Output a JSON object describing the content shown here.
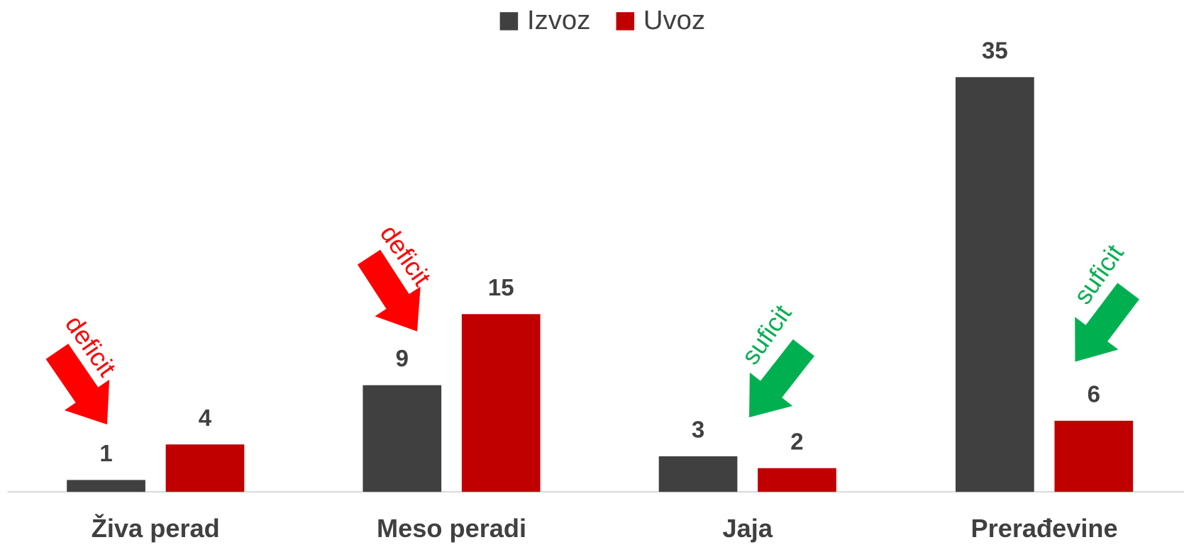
{
  "chart_data": {
    "type": "bar",
    "categories": [
      "Živa perad",
      "Meso peradi",
      "Jaja",
      "Prerađevine"
    ],
    "series": [
      {
        "name": "Izvoz",
        "color": "#404040",
        "values": [
          1,
          9,
          3,
          35
        ]
      },
      {
        "name": "Uvoz",
        "color": "#c00000",
        "values": [
          4,
          15,
          2,
          6
        ]
      }
    ],
    "annotations": [
      {
        "text": "deficit",
        "color": "#ff0000"
      },
      {
        "text": "deficit",
        "color": "#ff0000"
      },
      {
        "text": "suficit",
        "color": "#00b050"
      },
      {
        "text": "suficit",
        "color": "#00b050"
      }
    ],
    "legend": "top"
  }
}
